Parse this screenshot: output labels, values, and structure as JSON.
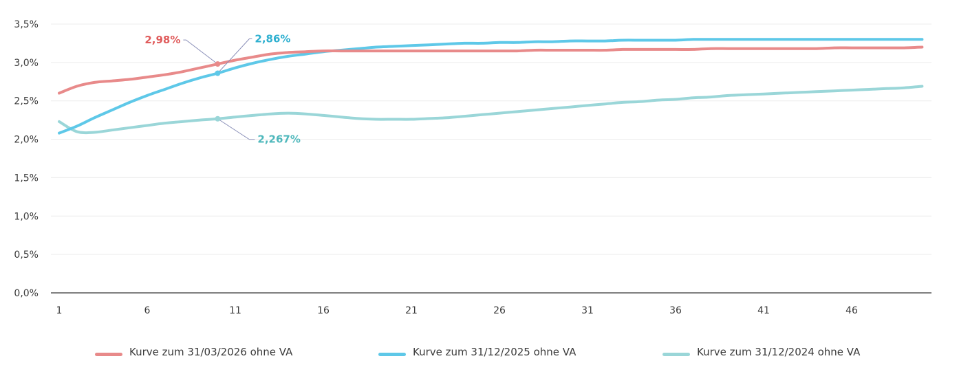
{
  "chart_data": {
    "type": "line",
    "title": "",
    "xlabel": "",
    "ylabel": "",
    "x": [
      1,
      2,
      3,
      4,
      5,
      6,
      7,
      8,
      9,
      10,
      11,
      12,
      13,
      14,
      15,
      16,
      17,
      18,
      19,
      20,
      21,
      22,
      23,
      24,
      25,
      26,
      27,
      28,
      29,
      30,
      31,
      32,
      33,
      34,
      35,
      36,
      37,
      38,
      39,
      40,
      41,
      42,
      43,
      44,
      45,
      46,
      47,
      48,
      49,
      50
    ],
    "x_ticks": [
      1,
      6,
      11,
      16,
      21,
      26,
      31,
      36,
      41,
      46
    ],
    "x_tick_labels": [
      "1",
      "6",
      "11",
      "16",
      "21",
      "26",
      "31",
      "36",
      "41",
      "46"
    ],
    "xlim": [
      1,
      51
    ],
    "ylim": [
      0,
      3.5
    ],
    "y_ticks": [
      0,
      0.5,
      1.0,
      1.5,
      2.0,
      2.5,
      3.0,
      3.5
    ],
    "y_tick_labels": [
      "0,0%",
      "0,5%",
      "1,0%",
      "1,5%",
      "2,0%",
      "2,5%",
      "3,0%",
      "3,5%"
    ],
    "grid": true,
    "legend_position": "bottom",
    "series": [
      {
        "name": "Kurve zum 31/03/2026 ohne VA",
        "color": "#e88a8a",
        "values": [
          2.6,
          2.69,
          2.74,
          2.76,
          2.78,
          2.81,
          2.84,
          2.88,
          2.93,
          2.98,
          3.03,
          3.07,
          3.11,
          3.13,
          3.14,
          3.15,
          3.15,
          3.15,
          3.15,
          3.15,
          3.15,
          3.15,
          3.15,
          3.15,
          3.15,
          3.15,
          3.15,
          3.16,
          3.16,
          3.16,
          3.16,
          3.16,
          3.17,
          3.17,
          3.17,
          3.17,
          3.17,
          3.18,
          3.18,
          3.18,
          3.18,
          3.18,
          3.18,
          3.18,
          3.19,
          3.19,
          3.19,
          3.19,
          3.19,
          3.2
        ]
      },
      {
        "name": "Kurve zum 31/12/2025 ohne VA",
        "color": "#5ec8e8",
        "values": [
          2.08,
          2.17,
          2.28,
          2.38,
          2.48,
          2.57,
          2.65,
          2.73,
          2.8,
          2.86,
          2.93,
          2.99,
          3.04,
          3.08,
          3.11,
          3.14,
          3.16,
          3.18,
          3.2,
          3.21,
          3.22,
          3.23,
          3.24,
          3.25,
          3.25,
          3.26,
          3.26,
          3.27,
          3.27,
          3.28,
          3.28,
          3.28,
          3.29,
          3.29,
          3.29,
          3.29,
          3.3,
          3.3,
          3.3,
          3.3,
          3.3,
          3.3,
          3.3,
          3.3,
          3.3,
          3.3,
          3.3,
          3.3,
          3.3,
          3.3
        ]
      },
      {
        "name": "Kurve zum 31/12/2024 ohne VA",
        "color": "#9ad6d8",
        "values": [
          2.23,
          2.1,
          2.09,
          2.12,
          2.15,
          2.18,
          2.21,
          2.23,
          2.25,
          2.267,
          2.29,
          2.31,
          2.33,
          2.34,
          2.33,
          2.31,
          2.29,
          2.27,
          2.26,
          2.26,
          2.26,
          2.27,
          2.28,
          2.3,
          2.32,
          2.34,
          2.36,
          2.38,
          2.4,
          2.42,
          2.44,
          2.46,
          2.48,
          2.49,
          2.51,
          2.52,
          2.54,
          2.55,
          2.57,
          2.58,
          2.59,
          2.6,
          2.61,
          2.62,
          2.63,
          2.64,
          2.65,
          2.66,
          2.67,
          2.69
        ]
      }
    ],
    "annotations": [
      {
        "series_index": 0,
        "x": 10,
        "y": 2.98,
        "label": "2,98%",
        "color": "#e05c5c",
        "side": "upper-left"
      },
      {
        "series_index": 1,
        "x": 10,
        "y": 2.86,
        "label": "2,86%",
        "color": "#2fb0d0",
        "side": "upper-right"
      },
      {
        "series_index": 2,
        "x": 10,
        "y": 2.267,
        "label": "2,267%",
        "color": "#4fb8bc",
        "side": "lower-right"
      }
    ]
  }
}
